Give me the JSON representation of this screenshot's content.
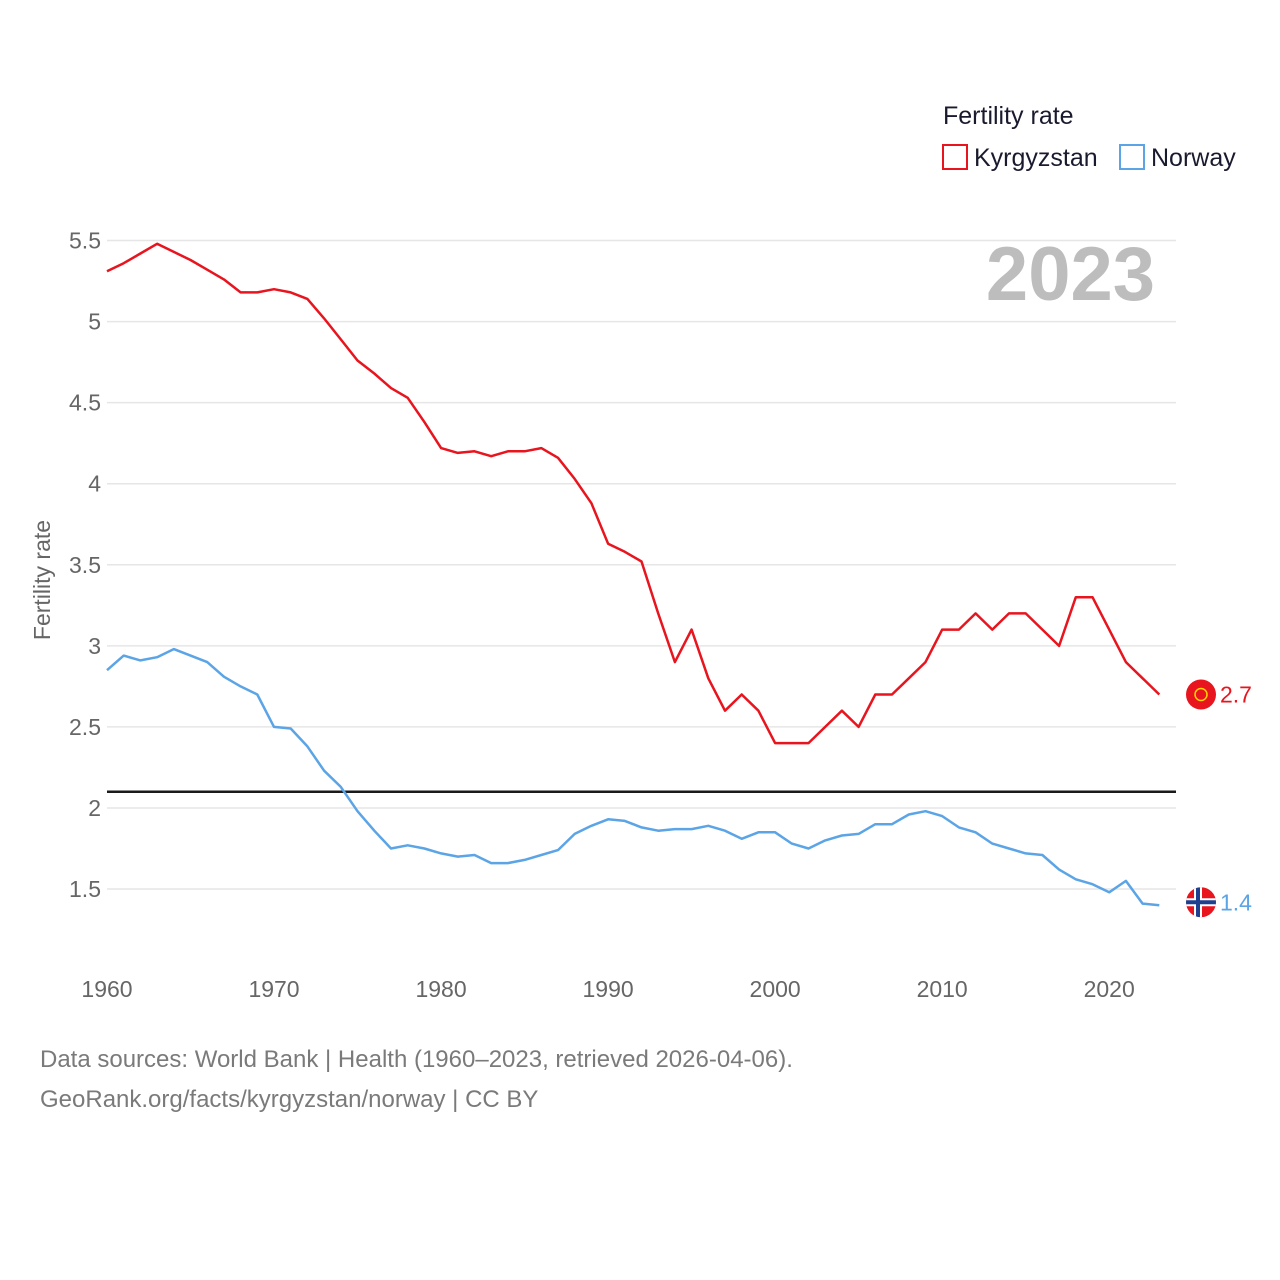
{
  "chart_data": {
    "type": "line",
    "legend_title": "Fertility rate",
    "legend_position": "top-right",
    "ylabel": "Fertility rate",
    "xlabel": "",
    "year_label": "2023",
    "xlim": [
      1960,
      2024
    ],
    "ylim": [
      1.05,
      5.75
    ],
    "grid": true,
    "x_ticks": [
      1960,
      1970,
      1980,
      1990,
      2000,
      2010,
      2020
    ],
    "y_ticks": [
      {
        "value": 1.5,
        "label": "1.5"
      },
      {
        "value": 2,
        "label": "2"
      },
      {
        "value": 2.5,
        "label": "2.5"
      },
      {
        "value": 3,
        "label": "3"
      },
      {
        "value": 3.5,
        "label": "3.5"
      },
      {
        "value": 4,
        "label": "4"
      },
      {
        "value": 4.5,
        "label": "4.5"
      },
      {
        "value": 5,
        "label": "5"
      },
      {
        "value": 5.5,
        "label": "5.5"
      }
    ],
    "reference_line": {
      "value": 2.1,
      "color": "#1a1a1a"
    },
    "x": [
      1960,
      1961,
      1962,
      1963,
      1964,
      1965,
      1966,
      1967,
      1968,
      1969,
      1970,
      1971,
      1972,
      1973,
      1974,
      1975,
      1976,
      1977,
      1978,
      1979,
      1980,
      1981,
      1982,
      1983,
      1984,
      1985,
      1986,
      1987,
      1988,
      1989,
      1990,
      1991,
      1992,
      1993,
      1994,
      1995,
      1996,
      1997,
      1998,
      1999,
      2000,
      2001,
      2002,
      2003,
      2004,
      2005,
      2006,
      2007,
      2008,
      2009,
      2010,
      2011,
      2012,
      2013,
      2014,
      2015,
      2016,
      2017,
      2018,
      2019,
      2020,
      2021,
      2022,
      2023
    ],
    "series": [
      {
        "name": "Kyrgyzstan",
        "color": "#e8141e",
        "end_label": "2.7",
        "values": [
          5.31,
          5.36,
          5.42,
          5.48,
          5.43,
          5.38,
          5.32,
          5.26,
          5.18,
          5.18,
          5.2,
          5.18,
          5.14,
          5.02,
          4.89,
          4.76,
          4.68,
          4.59,
          4.53,
          4.38,
          4.22,
          4.19,
          4.2,
          4.17,
          4.2,
          4.2,
          4.22,
          4.16,
          4.03,
          3.88,
          3.63,
          3.58,
          3.52,
          3.2,
          2.9,
          3.1,
          2.8,
          2.6,
          2.7,
          2.6,
          2.4,
          2.4,
          2.4,
          2.5,
          2.6,
          2.5,
          2.7,
          2.7,
          2.8,
          2.9,
          3.1,
          3.1,
          3.2,
          3.1,
          3.2,
          3.2,
          3.1,
          3.0,
          3.3,
          3.3,
          3.1,
          2.9,
          2.8,
          2.7
        ]
      },
      {
        "name": "Norway",
        "color": "#5ba4e6",
        "end_label": "1.4",
        "values": [
          2.85,
          2.94,
          2.91,
          2.93,
          2.98,
          2.94,
          2.9,
          2.81,
          2.75,
          2.7,
          2.5,
          2.49,
          2.38,
          2.23,
          2.13,
          1.98,
          1.86,
          1.75,
          1.77,
          1.75,
          1.72,
          1.7,
          1.71,
          1.66,
          1.66,
          1.68,
          1.71,
          1.74,
          1.84,
          1.89,
          1.93,
          1.92,
          1.88,
          1.86,
          1.87,
          1.87,
          1.89,
          1.86,
          1.81,
          1.85,
          1.85,
          1.78,
          1.75,
          1.8,
          1.83,
          1.84,
          1.9,
          1.9,
          1.96,
          1.98,
          1.95,
          1.88,
          1.85,
          1.78,
          1.75,
          1.72,
          1.71,
          1.62,
          1.56,
          1.53,
          1.48,
          1.55,
          1.41,
          1.4
        ]
      }
    ]
  },
  "footer": {
    "source_line": "Data sources: World Bank | Health (1960–2023, retrieved 2026-04-06).",
    "url_line": "GeoRank.org/facts/kyrgyzstan/norway | CC BY"
  }
}
